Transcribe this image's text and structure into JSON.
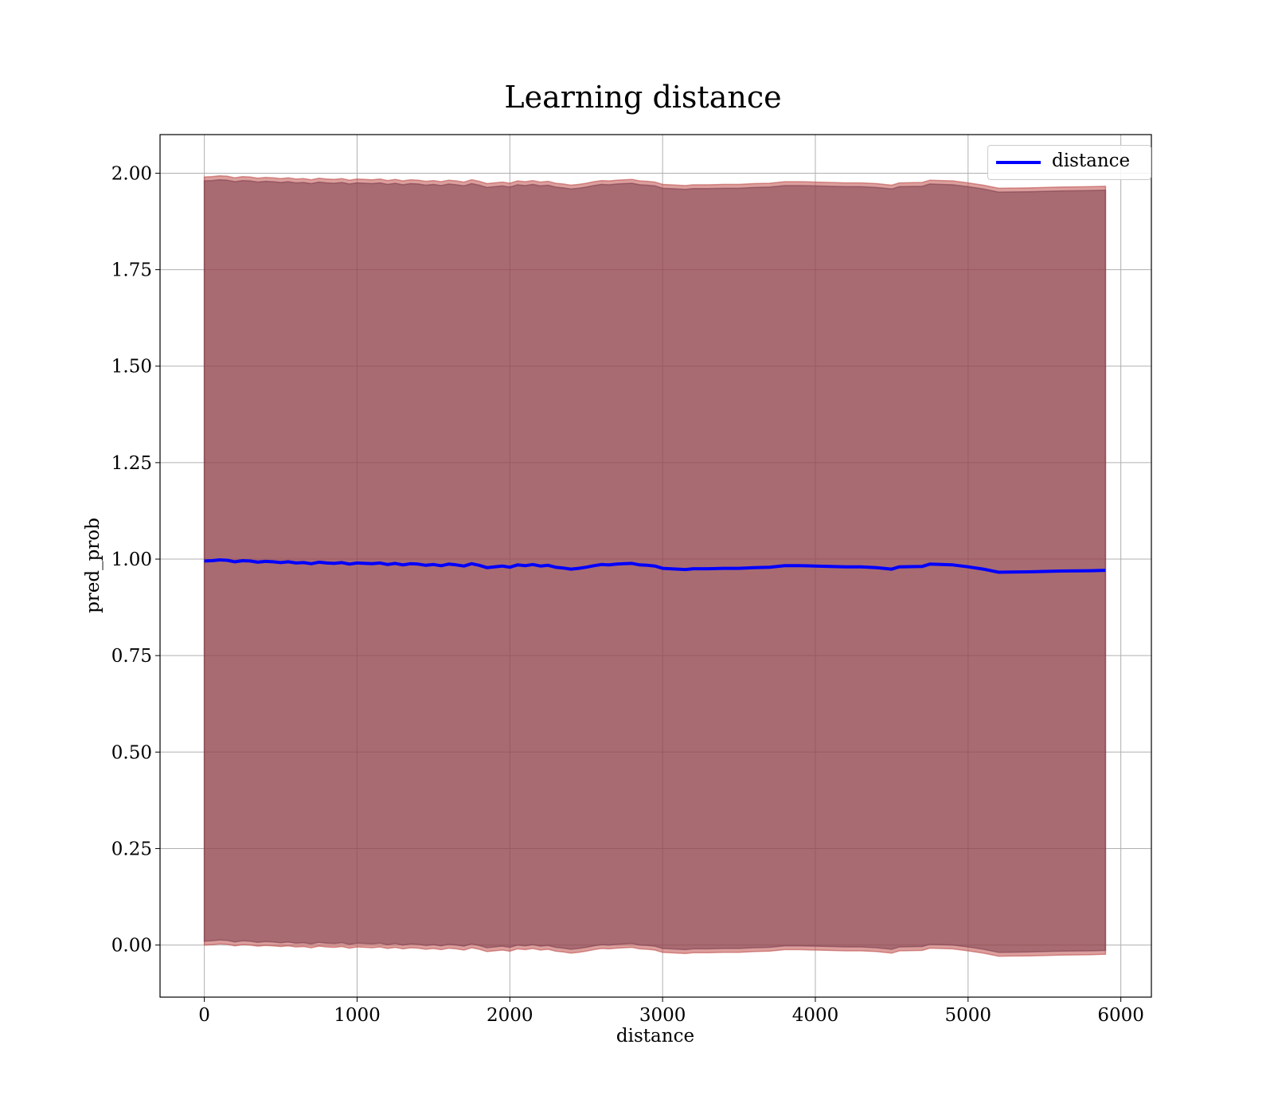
{
  "chart_data": {
    "type": "line",
    "title": "Learning distance",
    "xlabel": "distance",
    "ylabel": "pred_prob",
    "xlim": [
      -290,
      6200
    ],
    "ylim": [
      -0.135,
      2.1
    ],
    "grid": true,
    "legend_position": "top-right",
    "x_ticks": [
      0,
      1000,
      2000,
      3000,
      4000,
      5000,
      6000
    ],
    "x_tick_labels": [
      "0",
      "1000",
      "2000",
      "3000",
      "4000",
      "5000",
      "6000"
    ],
    "y_ticks": [
      0.0,
      0.25,
      0.5,
      0.75,
      1.0,
      1.25,
      1.5,
      1.75,
      2.0
    ],
    "y_tick_labels": [
      "0.00",
      "0.25",
      "0.50",
      "0.75",
      "1.00",
      "1.25",
      "1.50",
      "1.75",
      "2.00"
    ],
    "series": [
      {
        "name": "distance",
        "color": "#0000ff",
        "x": [
          0,
          50,
          100,
          150,
          200,
          250,
          300,
          350,
          400,
          450,
          500,
          550,
          600,
          650,
          700,
          750,
          800,
          850,
          900,
          950,
          1000,
          1050,
          1100,
          1150,
          1200,
          1250,
          1300,
          1350,
          1400,
          1450,
          1500,
          1550,
          1600,
          1650,
          1700,
          1750,
          1800,
          1850,
          1900,
          1950,
          2000,
          2050,
          2100,
          2150,
          2200,
          2250,
          2300,
          2350,
          2400,
          2450,
          2500,
          2550,
          2600,
          2650,
          2700,
          2750,
          2800,
          2850,
          2900,
          2950,
          3000,
          3050,
          3100,
          3150,
          3200,
          3300,
          3400,
          3500,
          3600,
          3700,
          3800,
          3900,
          4000,
          4100,
          4200,
          4300,
          4400,
          4500,
          4550,
          4700,
          4750,
          4900,
          5000,
          5100,
          5200,
          5400,
          5600,
          5800,
          5900
        ],
        "values": [
          0.995,
          0.996,
          0.998,
          0.997,
          0.993,
          0.996,
          0.995,
          0.992,
          0.994,
          0.993,
          0.991,
          0.993,
          0.99,
          0.991,
          0.988,
          0.992,
          0.99,
          0.989,
          0.991,
          0.987,
          0.99,
          0.989,
          0.988,
          0.99,
          0.986,
          0.989,
          0.985,
          0.988,
          0.987,
          0.984,
          0.986,
          0.983,
          0.987,
          0.985,
          0.982,
          0.988,
          0.984,
          0.978,
          0.98,
          0.982,
          0.979,
          0.985,
          0.983,
          0.986,
          0.982,
          0.984,
          0.979,
          0.977,
          0.974,
          0.976,
          0.979,
          0.983,
          0.986,
          0.985,
          0.987,
          0.988,
          0.989,
          0.985,
          0.984,
          0.982,
          0.976,
          0.975,
          0.974,
          0.973,
          0.975,
          0.975,
          0.976,
          0.976,
          0.978,
          0.979,
          0.983,
          0.983,
          0.982,
          0.981,
          0.98,
          0.98,
          0.978,
          0.974,
          0.98,
          0.981,
          0.987,
          0.985,
          0.98,
          0.974,
          0.966,
          0.967,
          0.969,
          0.97,
          0.971
        ]
      }
    ],
    "bands": [
      {
        "color": "#c0504d",
        "opacity": 0.55,
        "offset": 0.995
      },
      {
        "color": "#7f3f4f",
        "opacity": 0.55,
        "offset": 0.985
      }
    ]
  }
}
